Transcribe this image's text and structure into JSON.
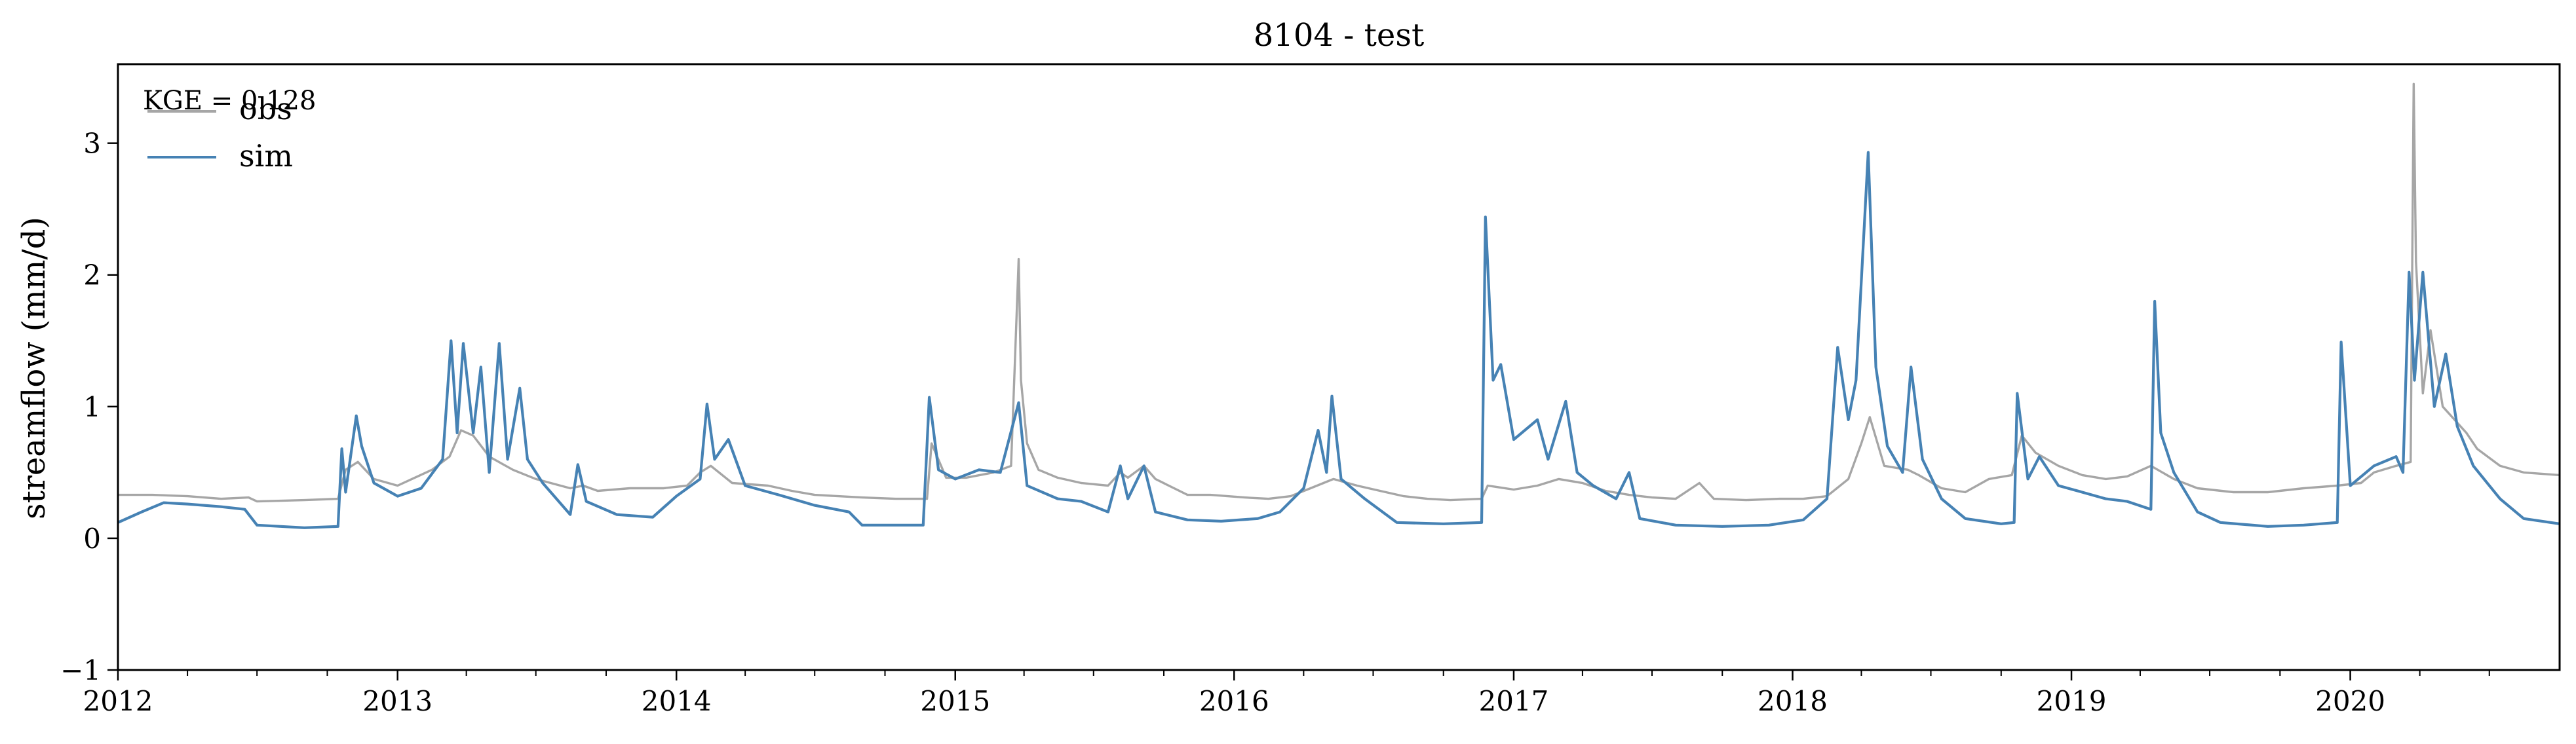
{
  "chart_data": {
    "type": "line",
    "title": "8104 - test",
    "ylabel": "streamflow (mm/d)",
    "xlabel": "",
    "x_range": [
      "2012-01-01",
      "2020-10-01"
    ],
    "ylim": [
      -1,
      3.6
    ],
    "y_ticks": [
      -1,
      0,
      1,
      2,
      3
    ],
    "y_tick_labels": [
      "−1",
      "0",
      "1",
      "2",
      "3"
    ],
    "x_ticks": [
      "2012-01-01",
      "2013-01-01",
      "2014-01-01",
      "2015-01-01",
      "2016-01-01",
      "2017-01-01",
      "2018-01-01",
      "2019-01-01",
      "2020-01-01"
    ],
    "x_tick_labels": [
      "2012",
      "2013",
      "2014",
      "2015",
      "2016",
      "2017",
      "2018",
      "2019",
      "2020"
    ],
    "grid": false,
    "legend_position": "top-left",
    "annotation": "KGE = 0.128",
    "series": [
      {
        "name": "obs",
        "color": "#a6a6a6",
        "points": [
          [
            "2012-01-01",
            0.33
          ],
          [
            "2012-02-15",
            0.33
          ],
          [
            "2012-04-01",
            0.32
          ],
          [
            "2012-05-15",
            0.3
          ],
          [
            "2012-06-20",
            0.31
          ],
          [
            "2012-07-01",
            0.28
          ],
          [
            "2012-09-01",
            0.29
          ],
          [
            "2012-10-15",
            0.3
          ],
          [
            "2012-10-25",
            0.52
          ],
          [
            "2012-11-10",
            0.58
          ],
          [
            "2012-12-01",
            0.45
          ],
          [
            "2013-01-01",
            0.4
          ],
          [
            "2013-02-15",
            0.52
          ],
          [
            "2013-03-10",
            0.62
          ],
          [
            "2013-03-25",
            0.82
          ],
          [
            "2013-04-10",
            0.78
          ],
          [
            "2013-05-01",
            0.62
          ],
          [
            "2013-06-01",
            0.52
          ],
          [
            "2013-07-01",
            0.45
          ],
          [
            "2013-08-15",
            0.38
          ],
          [
            "2013-09-01",
            0.4
          ],
          [
            "2013-09-20",
            0.36
          ],
          [
            "2013-11-01",
            0.38
          ],
          [
            "2013-12-15",
            0.38
          ],
          [
            "2014-01-15",
            0.4
          ],
          [
            "2014-02-01",
            0.5
          ],
          [
            "2014-02-15",
            0.55
          ],
          [
            "2014-03-15",
            0.42
          ],
          [
            "2014-05-01",
            0.4
          ],
          [
            "2014-06-01",
            0.36
          ],
          [
            "2014-07-01",
            0.33
          ],
          [
            "2014-09-01",
            0.31
          ],
          [
            "2014-10-15",
            0.3
          ],
          [
            "2014-11-25",
            0.3
          ],
          [
            "2014-12-01",
            0.72
          ],
          [
            "2014-12-20",
            0.46
          ],
          [
            "2015-01-15",
            0.46
          ],
          [
            "2015-02-20",
            0.5
          ],
          [
            "2015-03-15",
            0.55
          ],
          [
            "2015-03-25",
            2.12
          ],
          [
            "2015-03-28",
            1.2
          ],
          [
            "2015-04-05",
            0.72
          ],
          [
            "2015-04-20",
            0.52
          ],
          [
            "2015-05-15",
            0.46
          ],
          [
            "2015-06-15",
            0.42
          ],
          [
            "2015-07-20",
            0.4
          ],
          [
            "2015-08-05",
            0.5
          ],
          [
            "2015-08-15",
            0.46
          ],
          [
            "2015-09-05",
            0.55
          ],
          [
            "2015-09-20",
            0.45
          ],
          [
            "2015-11-01",
            0.33
          ],
          [
            "2015-12-01",
            0.33
          ],
          [
            "2016-01-15",
            0.31
          ],
          [
            "2016-02-15",
            0.3
          ],
          [
            "2016-03-15",
            0.32
          ],
          [
            "2016-04-10",
            0.38
          ],
          [
            "2016-05-10",
            0.45
          ],
          [
            "2016-06-10",
            0.4
          ],
          [
            "2016-07-10",
            0.36
          ],
          [
            "2016-08-10",
            0.32
          ],
          [
            "2016-09-10",
            0.3
          ],
          [
            "2016-10-10",
            0.29
          ],
          [
            "2016-11-20",
            0.3
          ],
          [
            "2016-11-28",
            0.4
          ],
          [
            "2017-01-01",
            0.37
          ],
          [
            "2017-02-01",
            0.4
          ],
          [
            "2017-03-01",
            0.45
          ],
          [
            "2017-04-01",
            0.42
          ],
          [
            "2017-05-01",
            0.36
          ],
          [
            "2017-06-01",
            0.33
          ],
          [
            "2017-07-01",
            0.31
          ],
          [
            "2017-08-01",
            0.3
          ],
          [
            "2017-09-01",
            0.42
          ],
          [
            "2017-09-20",
            0.3
          ],
          [
            "2017-11-01",
            0.29
          ],
          [
            "2017-12-15",
            0.3
          ],
          [
            "2018-01-15",
            0.3
          ],
          [
            "2018-02-15",
            0.32
          ],
          [
            "2018-03-15",
            0.45
          ],
          [
            "2018-04-01",
            0.72
          ],
          [
            "2018-04-12",
            0.92
          ],
          [
            "2018-05-01",
            0.55
          ],
          [
            "2018-06-01",
            0.52
          ],
          [
            "2018-06-15",
            0.48
          ],
          [
            "2018-07-15",
            0.38
          ],
          [
            "2018-08-15",
            0.35
          ],
          [
            "2018-09-15",
            0.45
          ],
          [
            "2018-10-15",
            0.48
          ],
          [
            "2018-10-28",
            0.78
          ],
          [
            "2018-11-15",
            0.65
          ],
          [
            "2018-12-15",
            0.55
          ],
          [
            "2019-01-15",
            0.48
          ],
          [
            "2019-02-15",
            0.45
          ],
          [
            "2019-03-15",
            0.47
          ],
          [
            "2019-04-15",
            0.55
          ],
          [
            "2019-05-15",
            0.45
          ],
          [
            "2019-06-15",
            0.38
          ],
          [
            "2019-08-01",
            0.35
          ],
          [
            "2019-09-15",
            0.35
          ],
          [
            "2019-11-01",
            0.38
          ],
          [
            "2019-12-15",
            0.4
          ],
          [
            "2020-01-15",
            0.42
          ],
          [
            "2020-02-01",
            0.5
          ],
          [
            "2020-03-01",
            0.55
          ],
          [
            "2020-03-20",
            0.58
          ],
          [
            "2020-03-24",
            3.45
          ],
          [
            "2020-03-27",
            2.1
          ],
          [
            "2020-04-05",
            1.1
          ],
          [
            "2020-04-15",
            1.58
          ],
          [
            "2020-05-01",
            1.0
          ],
          [
            "2020-06-01",
            0.8
          ],
          [
            "2020-06-15",
            0.68
          ],
          [
            "2020-07-15",
            0.55
          ],
          [
            "2020-08-15",
            0.5
          ],
          [
            "2020-10-01",
            0.48
          ]
        ]
      },
      {
        "name": "sim",
        "color": "#4682b4",
        "points": [
          [
            "2012-01-01",
            0.12
          ],
          [
            "2012-02-01",
            0.2
          ],
          [
            "2012-03-01",
            0.27
          ],
          [
            "2012-04-01",
            0.26
          ],
          [
            "2012-05-15",
            0.24
          ],
          [
            "2012-06-15",
            0.22
          ],
          [
            "2012-07-01",
            0.1
          ],
          [
            "2012-09-01",
            0.08
          ],
          [
            "2012-10-15",
            0.09
          ],
          [
            "2012-10-20",
            0.68
          ],
          [
            "2012-10-25",
            0.35
          ],
          [
            "2012-11-08",
            0.93
          ],
          [
            "2012-11-15",
            0.7
          ],
          [
            "2012-12-01",
            0.42
          ],
          [
            "2013-01-01",
            0.32
          ],
          [
            "2013-02-01",
            0.38
          ],
          [
            "2013-03-01",
            0.6
          ],
          [
            "2013-03-12",
            1.5
          ],
          [
            "2013-03-20",
            0.8
          ],
          [
            "2013-03-28",
            1.48
          ],
          [
            "2013-04-10",
            0.8
          ],
          [
            "2013-04-20",
            1.3
          ],
          [
            "2013-05-01",
            0.5
          ],
          [
            "2013-05-14",
            1.48
          ],
          [
            "2013-05-25",
            0.6
          ],
          [
            "2013-06-10",
            1.14
          ],
          [
            "2013-06-20",
            0.6
          ],
          [
            "2013-07-10",
            0.42
          ],
          [
            "2013-08-15",
            0.18
          ],
          [
            "2013-08-25",
            0.56
          ],
          [
            "2013-09-05",
            0.28
          ],
          [
            "2013-10-15",
            0.18
          ],
          [
            "2013-12-01",
            0.16
          ],
          [
            "2014-01-01",
            0.32
          ],
          [
            "2014-02-01",
            0.45
          ],
          [
            "2014-02-10",
            1.02
          ],
          [
            "2014-02-20",
            0.6
          ],
          [
            "2014-03-10",
            0.75
          ],
          [
            "2014-04-01",
            0.4
          ],
          [
            "2014-05-15",
            0.33
          ],
          [
            "2014-07-01",
            0.25
          ],
          [
            "2014-08-15",
            0.2
          ],
          [
            "2014-09-01",
            0.1
          ],
          [
            "2014-11-20",
            0.1
          ],
          [
            "2014-11-28",
            1.07
          ],
          [
            "2014-12-10",
            0.52
          ],
          [
            "2015-01-01",
            0.45
          ],
          [
            "2015-02-01",
            0.52
          ],
          [
            "2015-03-01",
            0.5
          ],
          [
            "2015-03-25",
            1.03
          ],
          [
            "2015-04-05",
            0.4
          ],
          [
            "2015-05-15",
            0.3
          ],
          [
            "2015-06-15",
            0.28
          ],
          [
            "2015-07-20",
            0.2
          ],
          [
            "2015-08-05",
            0.55
          ],
          [
            "2015-08-15",
            0.3
          ],
          [
            "2015-09-05",
            0.55
          ],
          [
            "2015-09-20",
            0.2
          ],
          [
            "2015-11-01",
            0.14
          ],
          [
            "2015-12-15",
            0.13
          ],
          [
            "2016-02-01",
            0.15
          ],
          [
            "2016-03-01",
            0.2
          ],
          [
            "2016-04-01",
            0.38
          ],
          [
            "2016-04-20",
            0.82
          ],
          [
            "2016-05-01",
            0.5
          ],
          [
            "2016-05-08",
            1.08
          ],
          [
            "2016-05-20",
            0.45
          ],
          [
            "2016-06-20",
            0.3
          ],
          [
            "2016-08-01",
            0.12
          ],
          [
            "2016-10-01",
            0.11
          ],
          [
            "2016-11-20",
            0.12
          ],
          [
            "2016-11-25",
            2.44
          ],
          [
            "2016-12-05",
            1.2
          ],
          [
            "2016-12-15",
            1.32
          ],
          [
            "2017-01-01",
            0.75
          ],
          [
            "2017-02-01",
            0.9
          ],
          [
            "2017-02-15",
            0.6
          ],
          [
            "2017-03-10",
            1.04
          ],
          [
            "2017-03-25",
            0.5
          ],
          [
            "2017-04-15",
            0.4
          ],
          [
            "2017-05-15",
            0.3
          ],
          [
            "2017-06-01",
            0.5
          ],
          [
            "2017-06-15",
            0.15
          ],
          [
            "2017-08-01",
            0.1
          ],
          [
            "2017-10-01",
            0.09
          ],
          [
            "2017-12-01",
            0.1
          ],
          [
            "2018-01-15",
            0.14
          ],
          [
            "2018-02-15",
            0.3
          ],
          [
            "2018-03-01",
            1.45
          ],
          [
            "2018-03-15",
            0.9
          ],
          [
            "2018-03-25",
            1.2
          ],
          [
            "2018-04-10",
            2.93
          ],
          [
            "2018-04-20",
            1.3
          ],
          [
            "2018-05-05",
            0.7
          ],
          [
            "2018-05-25",
            0.5
          ],
          [
            "2018-06-05",
            1.3
          ],
          [
            "2018-06-20",
            0.6
          ],
          [
            "2018-07-15",
            0.3
          ],
          [
            "2018-08-15",
            0.15
          ],
          [
            "2018-10-01",
            0.11
          ],
          [
            "2018-10-18",
            0.12
          ],
          [
            "2018-10-22",
            1.1
          ],
          [
            "2018-11-05",
            0.45
          ],
          [
            "2018-11-20",
            0.62
          ],
          [
            "2018-12-15",
            0.4
          ],
          [
            "2019-01-15",
            0.35
          ],
          [
            "2019-02-15",
            0.3
          ],
          [
            "2019-03-15",
            0.28
          ],
          [
            "2019-04-15",
            0.22
          ],
          [
            "2019-04-20",
            1.8
          ],
          [
            "2019-04-28",
            0.8
          ],
          [
            "2019-05-15",
            0.5
          ],
          [
            "2019-06-15",
            0.2
          ],
          [
            "2019-07-15",
            0.12
          ],
          [
            "2019-09-15",
            0.09
          ],
          [
            "2019-11-01",
            0.1
          ],
          [
            "2019-12-15",
            0.12
          ],
          [
            "2019-12-20",
            1.49
          ],
          [
            "2020-01-01",
            0.4
          ],
          [
            "2020-02-01",
            0.55
          ],
          [
            "2020-03-01",
            0.62
          ],
          [
            "2020-03-10",
            0.5
          ],
          [
            "2020-03-18",
            2.02
          ],
          [
            "2020-03-25",
            1.2
          ],
          [
            "2020-04-05",
            2.02
          ],
          [
            "2020-04-20",
            1.0
          ],
          [
            "2020-05-05",
            1.4
          ],
          [
            "2020-05-20",
            0.85
          ],
          [
            "2020-06-10",
            0.55
          ],
          [
            "2020-07-15",
            0.3
          ],
          [
            "2020-08-15",
            0.15
          ],
          [
            "2020-10-01",
            0.11
          ]
        ]
      }
    ]
  }
}
